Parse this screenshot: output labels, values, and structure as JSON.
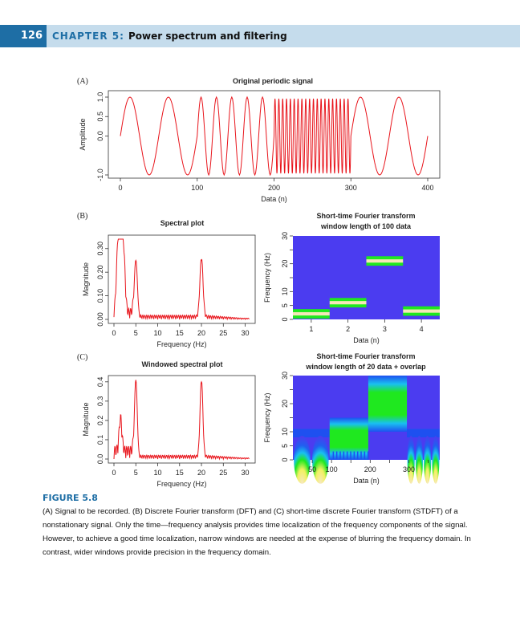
{
  "header": {
    "page_number": "126",
    "chapter_label": "CHAPTER 5:",
    "chapter_title": "Power spectrum and filtering"
  },
  "caption": {
    "title": "FIGURE 5.8",
    "text": "(A) Signal to be recorded. (B) Discrete Fourier transform (DFT) and (C) short-time discrete Fourier transform (STDFT) of a nonstationary signal. Only the time—frequency analysis provides time localization of the frequency components of the signal. However, to achieve a good time localization, narrow windows are needed at the expense of blurring the frequency domain. In contrast, wider windows provide precision in the frequency domain."
  },
  "colors": {
    "accent": "#1e6ea5",
    "header_band": "#c5dcec",
    "signal": "#e8141b",
    "stft_low": "#4b3cf0",
    "stft_mid": "#1fe81f",
    "stft_high": "#f5e6b8"
  },
  "chart_data": [
    {
      "panel": "(A)",
      "type": "line",
      "title": "Original periodic signal",
      "xlabel": "Data (n)",
      "ylabel": "Amplitude",
      "xlim": [
        0,
        400
      ],
      "ylim": [
        -1,
        1
      ],
      "xticks": [
        "0",
        "100",
        "200",
        "300",
        "400"
      ],
      "yticks": [
        "-1.0",
        "0.0",
        "0.5",
        "1.0"
      ],
      "segments": [
        {
          "n_start": 0,
          "n_end": 100,
          "cycles_per_100": 2
        },
        {
          "n_start": 100,
          "n_end": 200,
          "cycles_per_100": 5
        },
        {
          "n_start": 200,
          "n_end": 300,
          "cycles_per_100": 20
        },
        {
          "n_start": 300,
          "n_end": 400,
          "cycles_per_100": 2
        }
      ]
    },
    {
      "panel": "(B)",
      "type": "line",
      "title": "Spectral plot",
      "xlabel": "Frequency (Hz)",
      "ylabel": "Magnitude",
      "xlim": [
        0,
        31
      ],
      "ylim": [
        0,
        0.34
      ],
      "xticks": [
        "0",
        "5",
        "10",
        "15",
        "20",
        "25",
        "30"
      ],
      "yticks": [
        "0.00",
        "0.10",
        "0.20",
        "0.30"
      ],
      "peaks": [
        {
          "freq": 1.5,
          "magnitude": 0.34
        },
        {
          "freq": 0.9,
          "magnitude": 0.25
        },
        {
          "freq": 2.2,
          "magnitude": 0.25
        },
        {
          "freq": 5,
          "magnitude": 0.25
        },
        {
          "freq": 20,
          "magnitude": 0.25
        }
      ]
    },
    {
      "panel": "(B)",
      "type": "heatmap",
      "title": "Short-time Fourier transform",
      "subtitle": "window length of 100 data",
      "xlabel": "Data (n)",
      "ylabel": "Frequency (Hz)",
      "xlim": [
        0.5,
        4.5
      ],
      "ylim": [
        0,
        30
      ],
      "xticks": [
        "1",
        "2",
        "3",
        "4"
      ],
      "yticks": [
        "0",
        "5",
        "10",
        "20",
        "30"
      ],
      "bands": [
        {
          "window": 1,
          "freq": 2
        },
        {
          "window": 2,
          "freq": 6
        },
        {
          "window": 3,
          "freq": 21
        },
        {
          "window": 4,
          "freq": 3
        }
      ]
    },
    {
      "panel": "(C)",
      "type": "line",
      "title": "Windowed spectral plot",
      "xlabel": "Frequency (Hz)",
      "ylabel": "Magnitude",
      "xlim": [
        0,
        31
      ],
      "ylim": [
        0,
        0.42
      ],
      "xticks": [
        "0",
        "5",
        "10",
        "15",
        "20",
        "25",
        "30"
      ],
      "yticks": [
        "0.0",
        "0.1",
        "0.2",
        "0.3",
        "0.4"
      ],
      "peaks": [
        {
          "freq": 1.5,
          "magnitude": 0.17
        },
        {
          "freq": 5,
          "magnitude": 0.41
        },
        {
          "freq": 20,
          "magnitude": 0.4
        }
      ]
    },
    {
      "panel": "(C)",
      "type": "heatmap",
      "title": "Short-time Fourier transform",
      "subtitle": "window length of 20 data + overlap",
      "xlabel": "Data (n)",
      "ylabel": "Frequency (Hz)",
      "xlim": [
        0,
        380
      ],
      "ylim": [
        0,
        30
      ],
      "xticks": [
        "50",
        "100",
        "200",
        "300"
      ],
      "yticks": [
        "0",
        "5",
        "10",
        "20",
        "30"
      ],
      "regions": [
        {
          "n_start": 0,
          "n_end": 95,
          "freq": 2
        },
        {
          "n_start": 95,
          "n_end": 195,
          "freq": 5
        },
        {
          "n_start": 195,
          "n_end": 295,
          "freq": 20
        },
        {
          "n_start": 295,
          "n_end": 380,
          "freq": 2
        }
      ]
    }
  ]
}
